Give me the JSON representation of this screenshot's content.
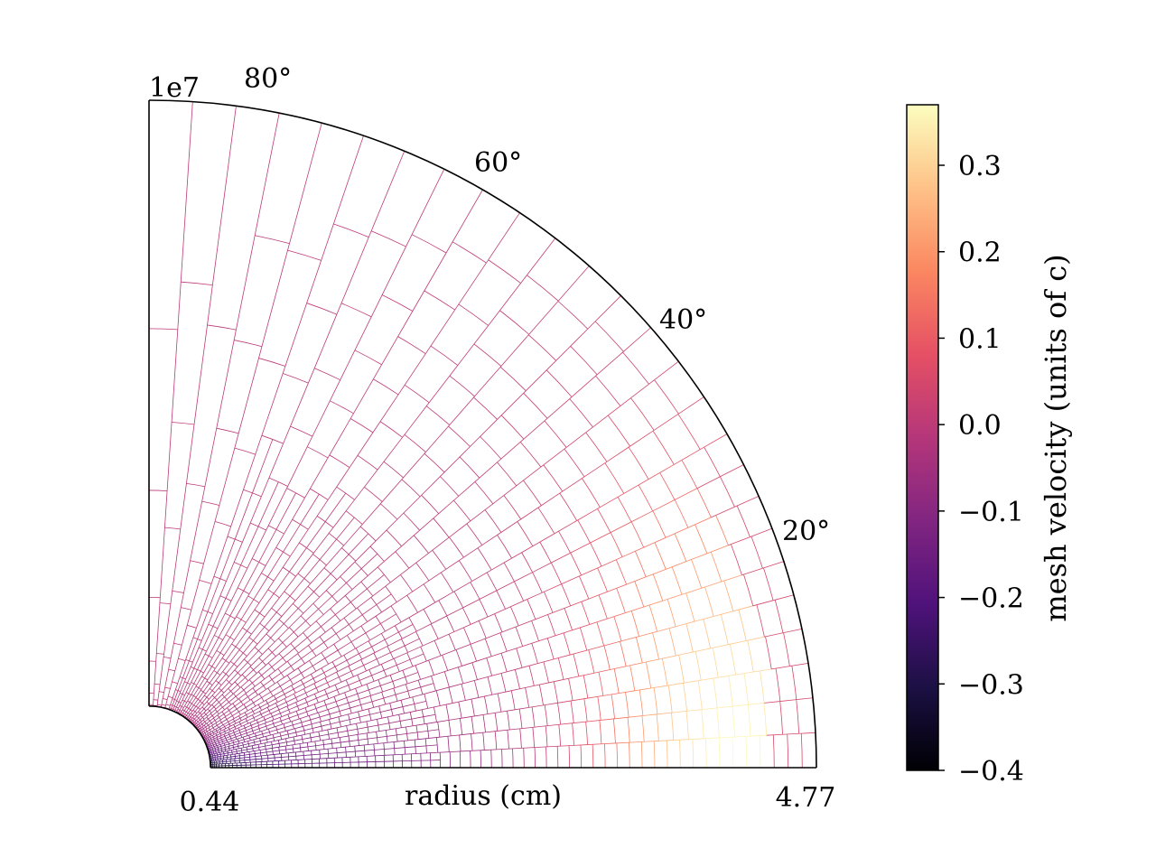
{
  "chart_data": {
    "type": "polar_mesh",
    "title": "",
    "xlabel": "radius (cm)",
    "offset_label": "1e7",
    "r_tick_labels": [
      "0.44",
      "4.77"
    ],
    "r_min": 0.44,
    "r_max": 4.77,
    "theta_range_deg": [
      0,
      90
    ],
    "theta_tick_labels": [
      "20°",
      "40°",
      "60°",
      "80°"
    ],
    "theta_ticks_deg": [
      20,
      40,
      60,
      80
    ],
    "colorbar": {
      "label": "mesh velocity (units of c)",
      "colormap": "magma",
      "vmin": -0.4,
      "vmax": 0.37,
      "tick_values": [
        0.3,
        0.2,
        0.1,
        0.0,
        -0.1,
        -0.2,
        -0.3,
        -0.4
      ],
      "tick_labels": [
        "0.3",
        "0.2",
        "0.1",
        "0.0",
        "−0.1",
        "−0.2",
        "−0.3",
        "−0.4"
      ]
    },
    "velocity_field": {
      "inner_region_value": -0.4,
      "background_value": 0.0,
      "outflow_peak_value": 0.37,
      "outflow_peak_radius": 4.2,
      "outflow_peak_theta_deg": 0
    }
  }
}
